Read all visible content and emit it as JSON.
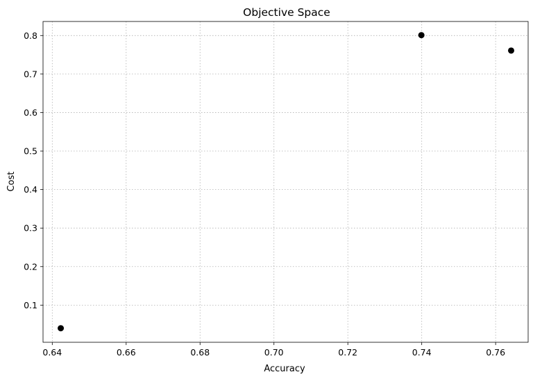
{
  "chart_data": {
    "type": "scatter",
    "title": "Objective Space",
    "xlabel": "Accuracy",
    "ylabel": "Cost",
    "xlim": [
      0.6375,
      0.7688
    ],
    "ylim": [
      0.0035,
      0.8365
    ],
    "xticks": [
      0.64,
      0.66,
      0.68,
      0.7,
      0.72,
      0.74,
      0.76
    ],
    "xtick_labels": [
      "0.64",
      "0.66",
      "0.68",
      "0.70",
      "0.72",
      "0.74",
      "0.76"
    ],
    "yticks": [
      0.1,
      0.2,
      0.3,
      0.4,
      0.5,
      0.6,
      0.7,
      0.8
    ],
    "ytick_labels": [
      "0.1",
      "0.2",
      "0.3",
      "0.4",
      "0.5",
      "0.6",
      "0.7",
      "0.8"
    ],
    "grid": true,
    "marker_color": "#000000",
    "points": [
      {
        "x": 0.6423,
        "y": 0.04
      },
      {
        "x": 0.7399,
        "y": 0.801
      },
      {
        "x": 0.7642,
        "y": 0.761
      }
    ]
  }
}
